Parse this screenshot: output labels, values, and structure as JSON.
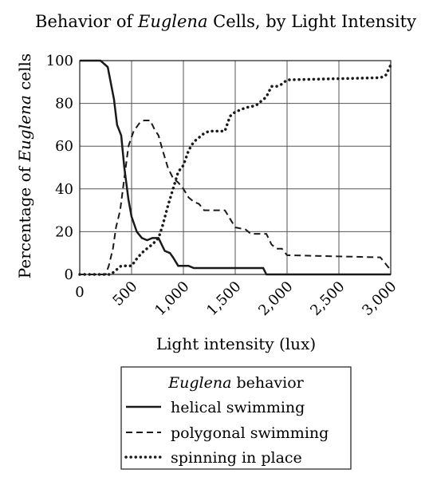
{
  "chart_data": {
    "type": "line",
    "title_parts": [
      "Behavior of ",
      "Euglena",
      " Cells, by Light Intensity"
    ],
    "xlabel": "Light intensity (lux)",
    "ylabel_parts": [
      "Percentage of ",
      "Euglena",
      " cells"
    ],
    "xlim": [
      0,
      3000
    ],
    "ylim": [
      0,
      100
    ],
    "x_ticks": [
      0,
      500,
      1000,
      1500,
      2000,
      2500,
      3000
    ],
    "x_tick_labels": [
      "0",
      "500",
      "1,000",
      "1,500",
      "2,000",
      "2,500",
      "3,000"
    ],
    "y_ticks": [
      0,
      20,
      40,
      60,
      80,
      100
    ],
    "y_tick_labels": [
      "0",
      "20",
      "40",
      "60",
      "80",
      "100"
    ],
    "grid": true,
    "legend": {
      "position": "bottom",
      "title_parts": [
        "Euglena",
        " behavior"
      ],
      "entries": [
        "helical swimming",
        "polygonal swimming",
        "spinning in place"
      ]
    },
    "series": [
      {
        "name": "helical swimming",
        "line_style": "solid",
        "color": "#1a1a1a",
        "points": [
          [
            0,
            100
          ],
          [
            200,
            100
          ],
          [
            270,
            97
          ],
          [
            330,
            82
          ],
          [
            360,
            70
          ],
          [
            400,
            65
          ],
          [
            430,
            50
          ],
          [
            470,
            35
          ],
          [
            500,
            27
          ],
          [
            550,
            20
          ],
          [
            600,
            17
          ],
          [
            650,
            16
          ],
          [
            700,
            17
          ],
          [
            760,
            17
          ],
          [
            820,
            11
          ],
          [
            870,
            10
          ],
          [
            900,
            8
          ],
          [
            950,
            4
          ],
          [
            1000,
            4
          ],
          [
            1050,
            4
          ],
          [
            1100,
            3
          ],
          [
            1500,
            3
          ],
          [
            1770,
            3
          ],
          [
            1800,
            0
          ],
          [
            3000,
            0
          ]
        ]
      },
      {
        "name": "polygonal swimming",
        "line_style": "dashed",
        "color": "#1a1a1a",
        "points": [
          [
            0,
            0
          ],
          [
            250,
            0
          ],
          [
            280,
            4
          ],
          [
            320,
            12
          ],
          [
            350,
            22
          ],
          [
            390,
            30
          ],
          [
            430,
            45
          ],
          [
            470,
            60
          ],
          [
            520,
            67
          ],
          [
            580,
            71
          ],
          [
            620,
            72
          ],
          [
            680,
            72
          ],
          [
            720,
            68
          ],
          [
            760,
            65
          ],
          [
            800,
            58
          ],
          [
            850,
            50
          ],
          [
            900,
            45
          ],
          [
            950,
            43
          ],
          [
            1000,
            40
          ],
          [
            1050,
            36
          ],
          [
            1100,
            34
          ],
          [
            1150,
            33
          ],
          [
            1200,
            30
          ],
          [
            1400,
            30
          ],
          [
            1450,
            26
          ],
          [
            1500,
            22
          ],
          [
            1600,
            21
          ],
          [
            1650,
            19
          ],
          [
            1800,
            19
          ],
          [
            1850,
            14
          ],
          [
            1900,
            12
          ],
          [
            1950,
            12
          ],
          [
            2000,
            9
          ],
          [
            2900,
            8
          ],
          [
            3000,
            2
          ]
        ]
      },
      {
        "name": "spinning in place",
        "line_style": "dotted",
        "color": "#1a1a1a",
        "points": [
          [
            0,
            0
          ],
          [
            300,
            0
          ],
          [
            350,
            2
          ],
          [
            400,
            4
          ],
          [
            500,
            4
          ],
          [
            560,
            8
          ],
          [
            620,
            11
          ],
          [
            700,
            14
          ],
          [
            760,
            17
          ],
          [
            800,
            23
          ],
          [
            850,
            32
          ],
          [
            900,
            40
          ],
          [
            950,
            48
          ],
          [
            1000,
            51
          ],
          [
            1050,
            58
          ],
          [
            1100,
            62
          ],
          [
            1150,
            64
          ],
          [
            1200,
            66
          ],
          [
            1250,
            67
          ],
          [
            1400,
            67
          ],
          [
            1450,
            74
          ],
          [
            1500,
            76
          ],
          [
            1600,
            78
          ],
          [
            1700,
            79
          ],
          [
            1750,
            81
          ],
          [
            1800,
            83
          ],
          [
            1850,
            88
          ],
          [
            1900,
            88
          ],
          [
            1950,
            89
          ],
          [
            2000,
            91
          ],
          [
            2900,
            92
          ],
          [
            2950,
            93
          ],
          [
            3000,
            98
          ]
        ]
      }
    ]
  }
}
